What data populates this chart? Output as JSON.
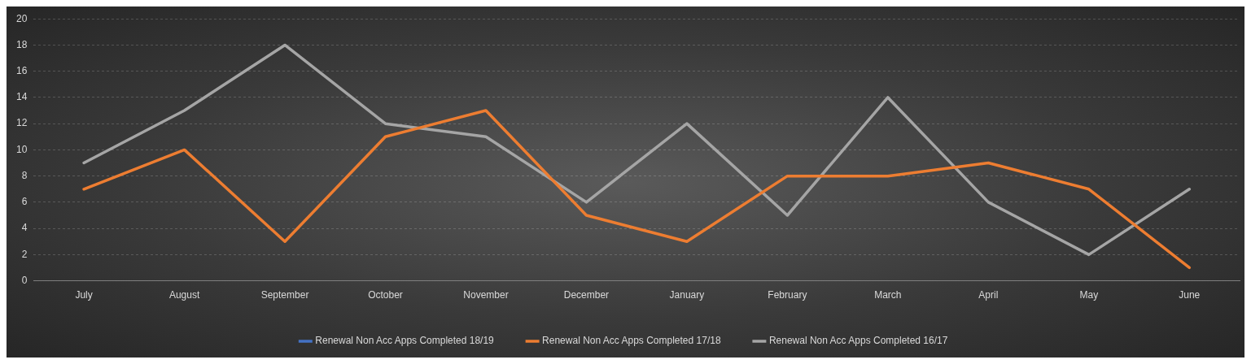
{
  "chart_data": {
    "type": "line",
    "categories": [
      "July",
      "August",
      "September",
      "October",
      "November",
      "December",
      "January",
      "February",
      "March",
      "April",
      "May",
      "June"
    ],
    "series": [
      {
        "name": "Renewal Non Acc Apps Completed 18/19",
        "color": "#4472c4",
        "values": [
          null,
          null,
          null,
          null,
          null,
          null,
          null,
          null,
          null,
          null,
          null,
          null
        ]
      },
      {
        "name": "Renewal Non Acc Apps Completed 17/18",
        "color": "#ed7d31",
        "values": [
          7,
          10,
          3,
          11,
          13,
          5,
          3,
          8,
          8,
          9,
          7,
          1
        ]
      },
      {
        "name": "Renewal Non Acc Apps Completed 16/17",
        "color": "#a5a5a5",
        "values": [
          9,
          13,
          18,
          12,
          11,
          6,
          12,
          5,
          14,
          6,
          2,
          7
        ]
      }
    ],
    "ylim": [
      0,
      20
    ],
    "yticks": [
      0,
      2,
      4,
      6,
      8,
      10,
      12,
      14,
      16,
      18,
      20
    ],
    "grid": "y",
    "legend": "bottom",
    "marker": "none",
    "line_style": "solid"
  }
}
